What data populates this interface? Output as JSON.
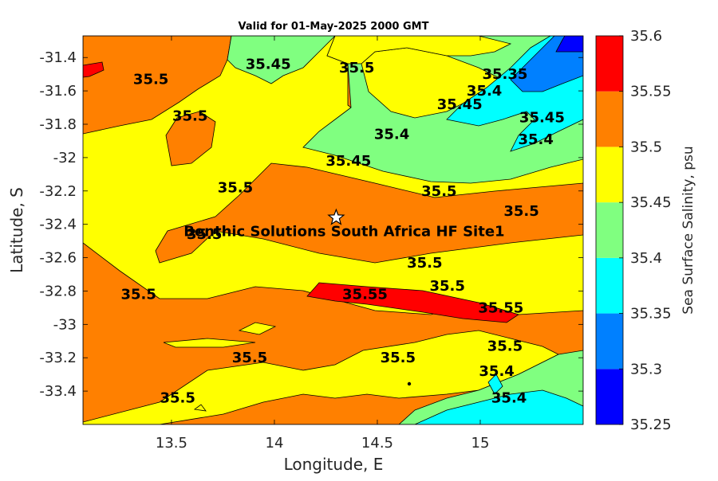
{
  "chart_data": {
    "type": "contour",
    "title": "Valid for 01-May-2025 2000 GMT",
    "xlabel": "Longitude, E",
    "ylabel": "Latitude, S",
    "xlim": [
      13.07,
      15.5
    ],
    "ylim": [
      -33.6,
      -31.27
    ],
    "xticks": [
      13.5,
      14,
      14.5,
      15
    ],
    "xtick_labels": [
      "13.5",
      "14",
      "14.5",
      "15"
    ],
    "yticks": [
      -31.4,
      -31.6,
      -31.8,
      -32,
      -32.2,
      -32.4,
      -32.6,
      -32.8,
      -33,
      -33.2,
      -33.4
    ],
    "ytick_labels": [
      "-31.4",
      "-31.6",
      "-31.8",
      "-32",
      "-32.2",
      "-32.4",
      "-32.6",
      "-32.8",
      "-33",
      "-33.2",
      "-33.4"
    ],
    "colorbar": {
      "label": "Sea Surface Salinity, psu",
      "levels": [
        35.25,
        35.3,
        35.35,
        35.4,
        35.45,
        35.5,
        35.55,
        35.6
      ],
      "tick_labels": [
        "35.25",
        "35.3",
        "35.35",
        "35.4",
        "35.45",
        "35.5",
        "35.55",
        "35.6"
      ],
      "colors": [
        "#0000ff",
        "#0080ff",
        "#00ffff",
        "#80ff80",
        "#ffff00",
        "#ff8000",
        "#ff0000"
      ]
    },
    "site": {
      "label": "Benthic Solutions South Africa HF Site1",
      "lon": 14.3,
      "lat": -32.36
    },
    "contour_labels": [
      {
        "text": "35.5",
        "lon": 13.4,
        "lat": -31.53
      },
      {
        "text": "35.45",
        "lon": 13.97,
        "lat": -31.44
      },
      {
        "text": "35.5",
        "lon": 14.4,
        "lat": -31.46
      },
      {
        "text": "35.5",
        "lon": 13.59,
        "lat": -31.75
      },
      {
        "text": "35.4",
        "lon": 14.57,
        "lat": -31.86
      },
      {
        "text": "35.45",
        "lon": 14.9,
        "lat": -31.68
      },
      {
        "text": "35.4",
        "lon": 15.02,
        "lat": -31.6
      },
      {
        "text": "35.35",
        "lon": 15.12,
        "lat": -31.5
      },
      {
        "text": "35.45",
        "lon": 15.3,
        "lat": -31.76
      },
      {
        "text": "35.4",
        "lon": 15.27,
        "lat": -31.89
      },
      {
        "text": "35.45",
        "lon": 14.36,
        "lat": -32.02
      },
      {
        "text": "35.5",
        "lon": 13.81,
        "lat": -32.18
      },
      {
        "text": "35.5",
        "lon": 14.8,
        "lat": -32.2
      },
      {
        "text": "35.5",
        "lon": 15.2,
        "lat": -32.32
      },
      {
        "text": "35.5",
        "lon": 13.66,
        "lat": -32.46
      },
      {
        "text": "35.5",
        "lon": 14.73,
        "lat": -32.63
      },
      {
        "text": "35.5",
        "lon": 14.84,
        "lat": -32.77
      },
      {
        "text": "35.55",
        "lon": 14.44,
        "lat": -32.82
      },
      {
        "text": "35.55",
        "lon": 15.1,
        "lat": -32.9
      },
      {
        "text": "35.5",
        "lon": 13.34,
        "lat": -32.82
      },
      {
        "text": "35.5",
        "lon": 15.12,
        "lat": -33.13
      },
      {
        "text": "35.5",
        "lon": 13.88,
        "lat": -33.2
      },
      {
        "text": "35.5",
        "lon": 14.6,
        "lat": -33.2
      },
      {
        "text": "35.5",
        "lon": 13.53,
        "lat": -33.44
      },
      {
        "text": "35.4",
        "lon": 15.08,
        "lat": -33.28
      },
      {
        "text": "35.4",
        "lon": 15.14,
        "lat": -33.44
      }
    ]
  }
}
